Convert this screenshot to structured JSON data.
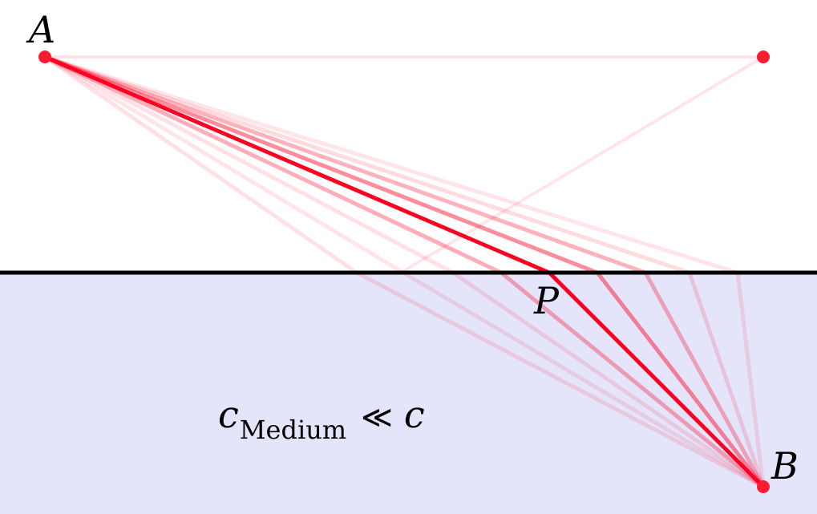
{
  "diagram": {
    "colors": {
      "path": "#ff0022",
      "point": "#ff1a33",
      "medium": "#e4e4fa",
      "boundary": "#000000"
    },
    "labels": {
      "a": "A",
      "b": "B",
      "p": "P"
    },
    "formula": {
      "c": "c",
      "subscript": "Medium",
      "relation": "≪",
      "c_right": "c"
    }
  }
}
